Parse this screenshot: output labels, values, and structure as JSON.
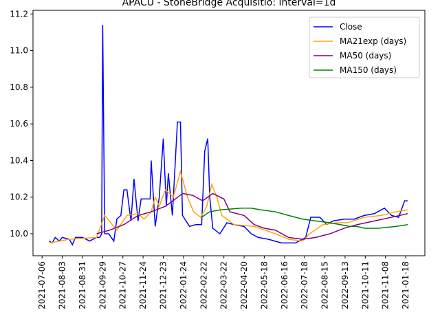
{
  "chart_data": {
    "type": "line",
    "title": "APACU - StoneBridge Acquisitio: interval=1d",
    "xlim": [
      -9,
      379
    ],
    "xticks": [
      {
        "value": 0,
        "label": "2021-07-06"
      },
      {
        "value": 20,
        "label": "2021-08-03"
      },
      {
        "value": 40,
        "label": "2021-08-31"
      },
      {
        "value": 60,
        "label": "2021-09-29"
      },
      {
        "value": 80,
        "label": "2021-10-27"
      },
      {
        "value": 100,
        "label": "2021-11-24"
      },
      {
        "value": 120,
        "label": "2021-12-23"
      },
      {
        "value": 140,
        "label": "2022-01-24"
      },
      {
        "value": 160,
        "label": "2022-02-22"
      },
      {
        "value": 180,
        "label": "2022-03-22"
      },
      {
        "value": 200,
        "label": "2022-04-20"
      },
      {
        "value": 220,
        "label": "2022-05-18"
      },
      {
        "value": 240,
        "label": "2022-06-16"
      },
      {
        "value": 260,
        "label": "2022-07-18"
      },
      {
        "value": 280,
        "label": "2022-08-15"
      },
      {
        "value": 300,
        "label": "2022-09-13"
      },
      {
        "value": 320,
        "label": "2021-10-11"
      },
      {
        "value": 340,
        "label": "2021-11-08"
      },
      {
        "value": 360,
        "label": "2021-01-18"
      }
    ],
    "ylim": [
      9.88,
      11.22
    ],
    "yticks": [
      {
        "value": 10,
        "label": "10.0"
      },
      10.2,
      10.4,
      10.6,
      10.8,
      {
        "value": 11,
        "label": "11.0"
      },
      11.2
    ],
    "legend": "upper right",
    "series": [
      {
        "name": "Close",
        "color": "#0000ff",
        "x": [
          7,
          10,
          13,
          17,
          20,
          27,
          30,
          33,
          40,
          47,
          54,
          57,
          59,
          60,
          62,
          66,
          71,
          74,
          78,
          81,
          84,
          88,
          91,
          95,
          98,
          101,
          107,
          108,
          112,
          116,
          120,
          123,
          125,
          129,
          134,
          137,
          139,
          146,
          152,
          158,
          161,
          164,
          166,
          169,
          176,
          183,
          190,
          200,
          207,
          214,
          224,
          237,
          251,
          261,
          266,
          275,
          282,
          288,
          299,
          309,
          319,
          329,
          339,
          346,
          353,
          359,
          362
        ],
        "values": [
          9.96,
          9.95,
          9.98,
          9.96,
          9.98,
          9.97,
          9.94,
          9.98,
          9.98,
          9.96,
          9.98,
          9.98,
          10.0,
          11.14,
          10.0,
          10.0,
          9.96,
          10.08,
          10.1,
          10.24,
          10.24,
          10.07,
          10.3,
          10.07,
          10.19,
          10.19,
          10.19,
          10.4,
          10.04,
          10.2,
          10.52,
          10.15,
          10.33,
          10.1,
          10.61,
          10.61,
          10.1,
          10.04,
          10.05,
          10.05,
          10.45,
          10.52,
          10.2,
          10.03,
          10.0,
          10.06,
          10.05,
          10.04,
          10.0,
          9.98,
          9.97,
          9.95,
          9.95,
          9.98,
          10.09,
          10.09,
          10.05,
          10.07,
          10.08,
          10.08,
          10.1,
          10.11,
          10.14,
          10.1,
          10.09,
          10.18,
          10.18
        ]
      },
      {
        "name": "MA21exp (days)",
        "color": "#ffa500",
        "x": [
          7,
          27,
          54,
          62,
          74,
          84,
          95,
          101,
          108,
          112,
          116,
          122,
          130,
          137,
          144,
          150,
          157,
          163,
          168,
          173,
          178,
          190,
          210,
          231,
          244,
          258,
          265,
          278,
          292,
          302,
          319,
          336,
          350,
          362
        ],
        "values": [
          9.95,
          9.97,
          9.98,
          10.1,
          10.02,
          10.1,
          10.11,
          10.08,
          10.12,
          10.2,
          10.15,
          10.24,
          10.2,
          10.34,
          10.2,
          10.12,
          10.09,
          10.15,
          10.27,
          10.2,
          10.1,
          10.05,
          10.04,
          10.0,
          9.97,
          9.96,
          10.0,
          10.05,
          10.06,
          10.06,
          10.09,
          10.1,
          10.12,
          10.13
        ]
      },
      {
        "name": "MA50 (days)",
        "color": "#800080",
        "x": [
          54,
          67,
          81,
          95,
          108,
          122,
          132,
          139,
          149,
          159,
          169,
          180,
          186,
          200,
          210,
          220,
          231,
          244,
          258,
          271,
          285,
          299,
          312,
          329,
          346,
          362
        ],
        "values": [
          10.0,
          10.02,
          10.05,
          10.1,
          10.12,
          10.15,
          10.19,
          10.22,
          10.21,
          10.18,
          10.22,
          10.19,
          10.12,
          10.1,
          10.05,
          10.03,
          10.02,
          9.98,
          9.97,
          9.98,
          10.0,
          10.03,
          10.05,
          10.07,
          10.09,
          10.11
        ]
      },
      {
        "name": "MA150 (days)",
        "color": "#008000",
        "x": [
          158,
          166,
          176,
          197,
          207,
          217,
          231,
          244,
          258,
          271,
          285,
          305,
          312,
          319,
          333,
          350,
          362
        ],
        "values": [
          10.09,
          10.12,
          10.13,
          10.14,
          10.14,
          10.13,
          10.12,
          10.1,
          10.08,
          10.07,
          10.06,
          10.04,
          10.04,
          10.03,
          10.03,
          10.04,
          10.05
        ]
      }
    ]
  }
}
